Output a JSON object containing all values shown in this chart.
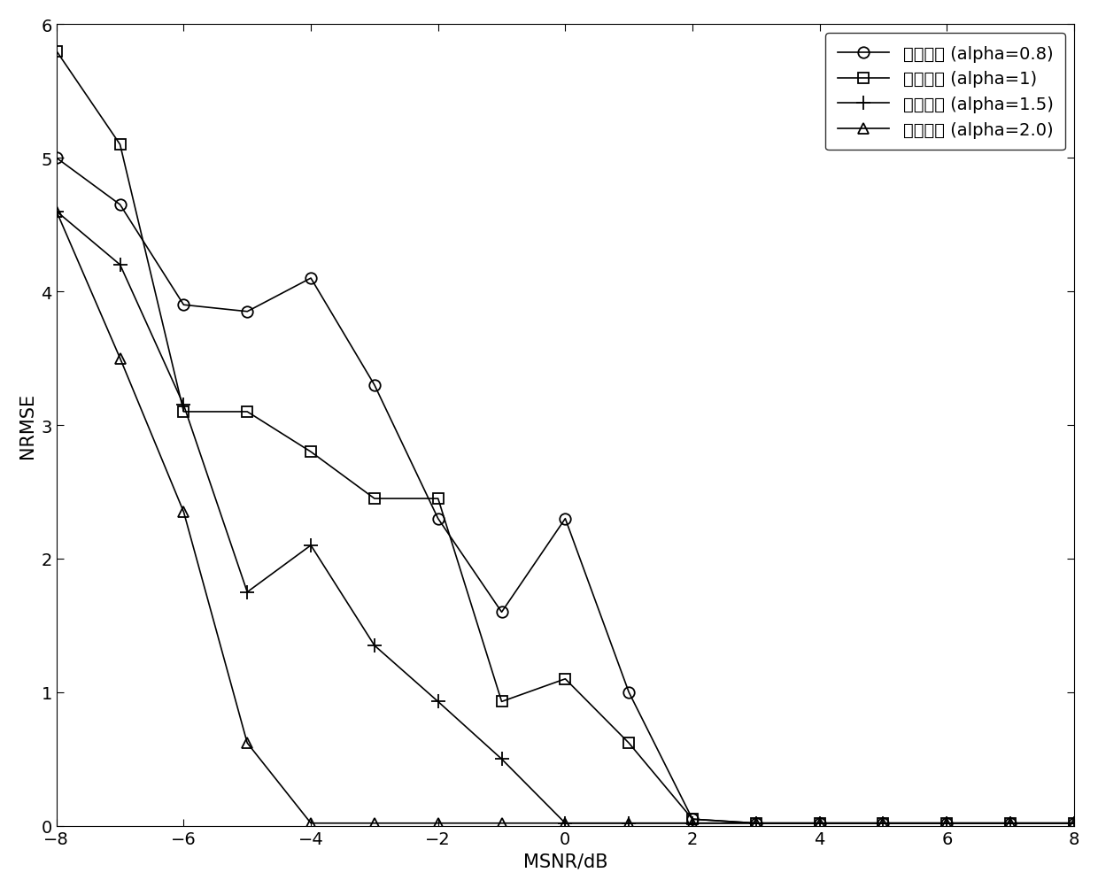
{
  "x": [
    -8,
    -7,
    -6,
    -5,
    -4,
    -3,
    -2,
    -1,
    0,
    1,
    2,
    3,
    4,
    5,
    6,
    7,
    8
  ],
  "series": [
    {
      "label": "符号长度 (alpha=0.8)",
      "marker": "o",
      "y": [
        5.0,
        4.65,
        3.9,
        3.85,
        4.1,
        3.3,
        2.3,
        1.6,
        2.3,
        1.0,
        0.05,
        0.02,
        0.02,
        0.02,
        0.02,
        0.02,
        0.02
      ]
    },
    {
      "label": "符号长度 (alpha=1)",
      "marker": "s",
      "y": [
        5.8,
        5.1,
        3.1,
        3.1,
        2.8,
        2.45,
        2.45,
        0.93,
        1.1,
        0.62,
        0.05,
        0.02,
        0.02,
        0.02,
        0.02,
        0.02,
        0.02
      ]
    },
    {
      "label": "符号长度 (alpha=1.5)",
      "marker": "+",
      "y": [
        4.6,
        4.2,
        3.15,
        1.75,
        2.1,
        1.35,
        0.93,
        0.5,
        0.02,
        0.02,
        0.02,
        0.02,
        0.02,
        0.02,
        0.02,
        0.02,
        0.02
      ]
    },
    {
      "label": "符号长度 (alpha=2.0)",
      "marker": "^",
      "y": [
        4.6,
        3.5,
        2.35,
        0.62,
        0.02,
        0.02,
        0.02,
        0.02,
        0.02,
        0.02,
        0.02,
        0.02,
        0.02,
        0.02,
        0.02,
        0.02,
        0.02
      ]
    }
  ],
  "xlabel": "MSNR/dB",
  "ylabel": "NRMSE",
  "xlim": [
    -8,
    8
  ],
  "ylim": [
    0,
    6
  ],
  "xticks": [
    -8,
    -6,
    -4,
    -2,
    0,
    2,
    4,
    6,
    8
  ],
  "yticks": [
    0,
    1,
    2,
    3,
    4,
    5,
    6
  ],
  "color": "#000000",
  "legend_loc": "upper right",
  "fontsize_label": 15,
  "fontsize_tick": 14,
  "fontsize_legend": 14
}
